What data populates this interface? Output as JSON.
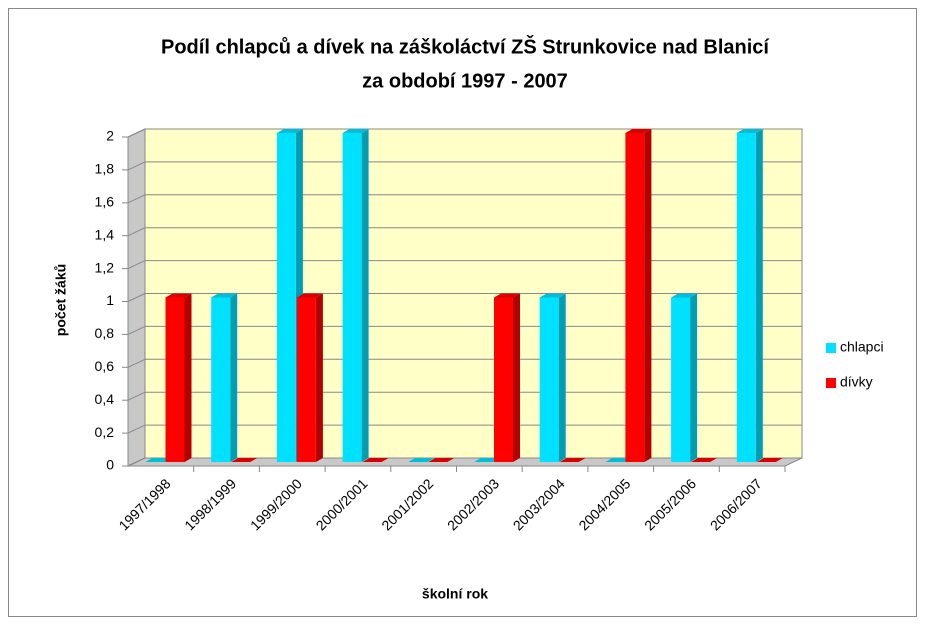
{
  "chart_data": {
    "type": "bar3d",
    "title": [
      "Podíl chlapců a dívek na záškoláctví ZŠ Strunkovice nad Blanicí",
      "za období 1997 - 2007"
    ],
    "x_label": "školní rok",
    "y_label": "počet žáků",
    "categories": [
      "1997/1998",
      "1998/1999",
      "1999/2000",
      "2000/2001",
      "2001/2002",
      "2002/2003",
      "2003/2004",
      "2004/2005",
      "2005/2006",
      "2006/2007"
    ],
    "series": [
      {
        "name": "chlapci",
        "color": "#00e0ff",
        "values": [
          0,
          1,
          2,
          2,
          0,
          0,
          1,
          0,
          1,
          2
        ]
      },
      {
        "name": "dívky",
        "color": "#ff0000",
        "values": [
          1,
          0,
          1,
          0,
          0,
          1,
          0,
          2,
          0,
          0
        ]
      }
    ],
    "ylim": [
      0,
      2
    ],
    "yticks": [
      0,
      {
        "value": 0.2,
        "label": "0,2"
      },
      {
        "value": 0.4,
        "label": "0,4"
      },
      {
        "value": 0.6,
        "label": "0,6"
      },
      {
        "value": 0.8,
        "label": "0,8"
      },
      1,
      {
        "value": 1.2,
        "label": "1,2"
      },
      {
        "value": 1.4,
        "label": "1,4"
      },
      {
        "value": 1.6,
        "label": "1,6"
      },
      {
        "value": 1.8,
        "label": "1,8"
      },
      2
    ],
    "grid": true,
    "legend": "right"
  }
}
